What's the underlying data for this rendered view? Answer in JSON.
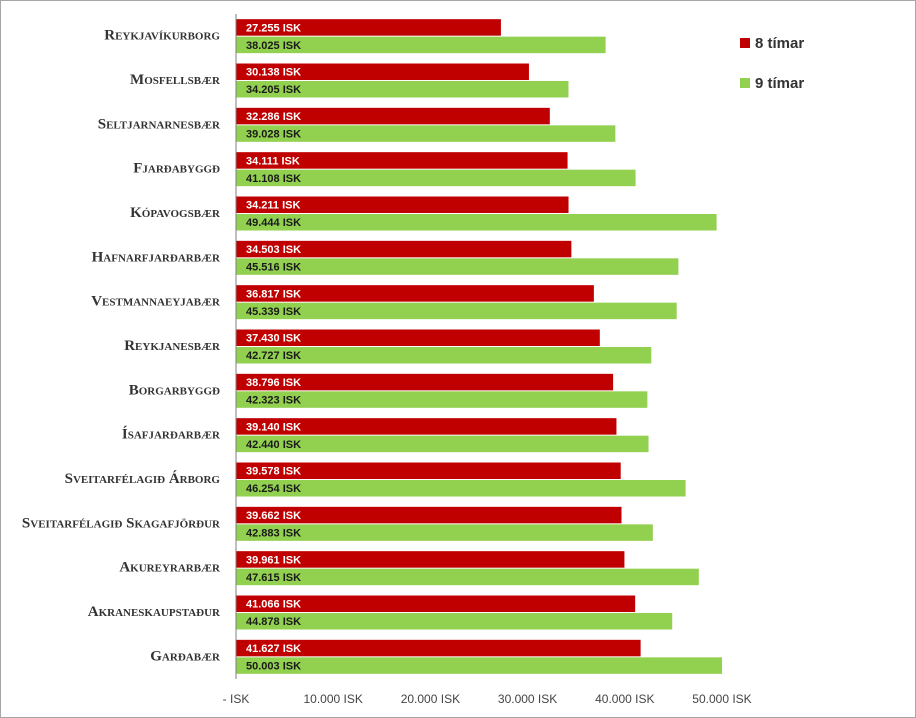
{
  "chart_data": {
    "type": "hbar",
    "categories": [
      "Reykjavíkurborg",
      "Mosfellsbær",
      "Seltjarnarnesbær",
      "Fjarðabyggð",
      "Kópavogsbær",
      "Hafnarfjarðarbær",
      "Vestmannaeyjabær",
      "Reykjanesbær",
      "Borgarbyggð",
      "Ísafjarðarbær",
      "Sveitarfélagið Árborg",
      "Sveitarfélagið Skagafjörður",
      "Akureyrarbær",
      "Akraneskaupstaður",
      "Garðabær"
    ],
    "series": [
      {
        "name": "8 tímar",
        "color": "#c00000",
        "values": [
          27255,
          30138,
          32286,
          34111,
          34211,
          34503,
          36817,
          37430,
          38796,
          39140,
          39578,
          39662,
          39961,
          41066,
          41627
        ],
        "value_labels": [
          "27.255 ISK",
          "30.138 ISK",
          "32.286 ISK",
          "34.111 ISK",
          "34.211 ISK",
          "34.503 ISK",
          "36.817 ISK",
          "37.430 ISK",
          "38.796 ISK",
          "39.140 ISK",
          "39.578 ISK",
          "39.662 ISK",
          "39.961 ISK",
          "41.066 ISK",
          "41.627 ISK"
        ]
      },
      {
        "name": "9 tímar",
        "color": "#92d050",
        "values": [
          38025,
          34205,
          39028,
          41108,
          49444,
          45516,
          45339,
          42727,
          42323,
          42440,
          46254,
          42883,
          47615,
          44878,
          50003
        ],
        "value_labels": [
          "38.025 ISK",
          "34.205 ISK",
          "39.028 ISK",
          "41.108 ISK",
          "49.444 ISK",
          "45.516 ISK",
          "45.339 ISK",
          "42.727 ISK",
          "42.323 ISK",
          "42.440 ISK",
          "46.254 ISK",
          "42.883 ISK",
          "47.615 ISK",
          "44.878 ISK",
          "50.003 ISK"
        ]
      }
    ],
    "xlim": [
      0,
      50000
    ],
    "xticks": [
      {
        "value": 0,
        "label": "- ISK"
      },
      {
        "value": 10000,
        "label": "10.000 ISK"
      },
      {
        "value": 20000,
        "label": "20.000 ISK"
      },
      {
        "value": 30000,
        "label": "30.000 ISK"
      },
      {
        "value": 40000,
        "label": "40.000 ISK"
      },
      {
        "value": 50000,
        "label": "50.000 ISK"
      }
    ],
    "legend": "top-right"
  }
}
